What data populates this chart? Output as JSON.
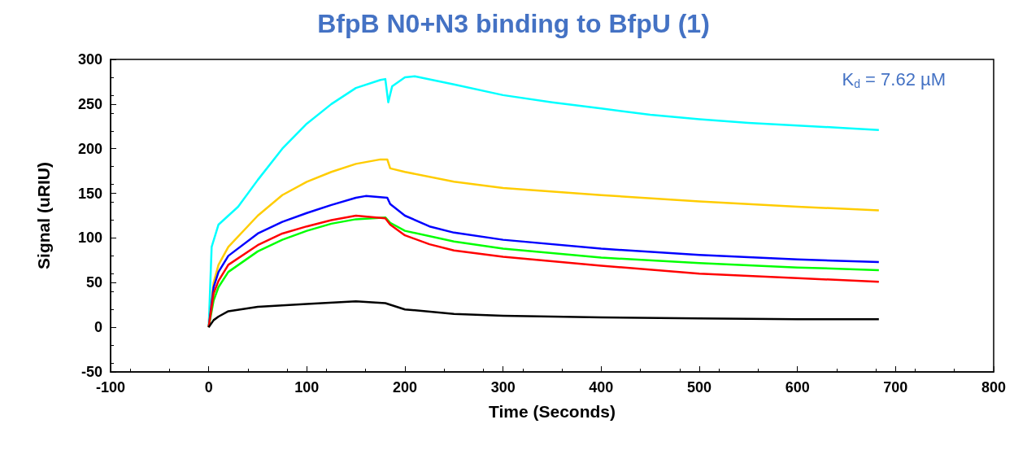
{
  "chart_data": {
    "type": "line",
    "title": "BfpB N0+N3 binding to BfpU (1)",
    "xlabel": "Time (Seconds)",
    "ylabel": "Signal (uRIU)",
    "annotations": [
      "K$_{d}$ = 7.62 µM"
    ],
    "xlim": [
      -100,
      800
    ],
    "xticks": [
      -100,
      0,
      100,
      200,
      300,
      400,
      500,
      600,
      700,
      800
    ],
    "ylim": [
      -50,
      300
    ],
    "yticks": [
      -50,
      0,
      50,
      100,
      150,
      200,
      250,
      300
    ],
    "grid": false,
    "series": [
      {
        "color": "#00ffff",
        "x": [
          0,
          3,
          10,
          20,
          30,
          50,
          75,
          100,
          125,
          150,
          175,
          180,
          183,
          187,
          200,
          210,
          250,
          300,
          350,
          400,
          450,
          500,
          550,
          600,
          650,
          683
        ],
        "values": [
          0,
          90,
          115,
          125,
          135,
          165,
          200,
          228,
          250,
          268,
          277,
          278,
          252,
          270,
          280,
          281,
          272,
          260,
          252,
          245,
          238,
          233,
          229,
          226,
          223,
          221
        ]
      },
      {
        "color": "#ffcc00",
        "x": [
          0,
          5,
          10,
          20,
          50,
          75,
          100,
          125,
          150,
          175,
          182,
          185,
          200,
          250,
          300,
          400,
          500,
          600,
          683
        ],
        "values": [
          0,
          50,
          70,
          90,
          125,
          148,
          163,
          174,
          183,
          188,
          188,
          178,
          174,
          163,
          156,
          148,
          141,
          135,
          131
        ]
      },
      {
        "color": "#0000ff",
        "x": [
          0,
          5,
          10,
          20,
          50,
          75,
          100,
          125,
          150,
          160,
          182,
          185,
          200,
          225,
          250,
          300,
          400,
          500,
          600,
          683
        ],
        "values": [
          0,
          45,
          62,
          80,
          105,
          118,
          128,
          137,
          145,
          147,
          145,
          138,
          125,
          113,
          106,
          98,
          88,
          81,
          76,
          73
        ]
      },
      {
        "color": "#00ff00",
        "x": [
          0,
          5,
          10,
          20,
          50,
          75,
          100,
          125,
          150,
          180,
          185,
          200,
          250,
          300,
          400,
          500,
          600,
          683
        ],
        "values": [
          0,
          30,
          45,
          62,
          85,
          98,
          108,
          116,
          121,
          123,
          117,
          108,
          96,
          88,
          78,
          72,
          67,
          64
        ]
      },
      {
        "color": "#ff0000",
        "x": [
          0,
          5,
          10,
          20,
          50,
          75,
          100,
          125,
          150,
          180,
          185,
          200,
          225,
          250,
          300,
          400,
          500,
          600,
          683
        ],
        "values": [
          0,
          38,
          52,
          70,
          92,
          105,
          113,
          120,
          125,
          122,
          115,
          103,
          93,
          86,
          79,
          69,
          60,
          55,
          51
        ]
      },
      {
        "color": "#000000",
        "x": [
          0,
          5,
          10,
          20,
          50,
          100,
          150,
          180,
          200,
          250,
          300,
          400,
          500,
          600,
          683
        ],
        "values": [
          0,
          8,
          12,
          18,
          23,
          26,
          29,
          27,
          20,
          15,
          13,
          11,
          10,
          9,
          9
        ]
      }
    ]
  }
}
